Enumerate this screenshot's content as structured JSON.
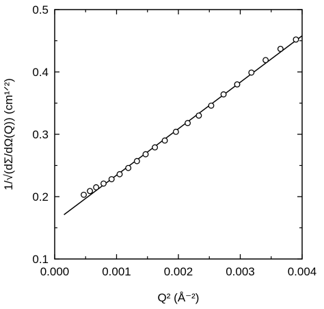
{
  "chart_data": {
    "type": "scatter",
    "xlabel": "Q² (Å⁻²)",
    "ylabel": "1/√(dΣ/dΩ(Q)) (cm¹ᐟ²)",
    "xlim": [
      0.0,
      0.004
    ],
    "ylim": [
      0.1,
      0.5
    ],
    "x_ticks": [
      "0.000",
      "0.001",
      "0.002",
      "0.003",
      "0.004"
    ],
    "y_ticks": [
      "0.1",
      "0.2",
      "0.3",
      "0.4",
      "0.5"
    ],
    "grid": false,
    "legend": "none",
    "series": [
      {
        "marker": "open-circle",
        "points": [
          [
            0.00047,
            0.203
          ],
          [
            0.00057,
            0.209
          ],
          [
            0.00067,
            0.215
          ],
          [
            0.00079,
            0.221
          ],
          [
            0.00092,
            0.228
          ],
          [
            0.00105,
            0.236
          ],
          [
            0.00119,
            0.246
          ],
          [
            0.00133,
            0.257
          ],
          [
            0.00147,
            0.268
          ],
          [
            0.00162,
            0.279
          ],
          [
            0.00178,
            0.29
          ],
          [
            0.00196,
            0.304
          ],
          [
            0.00215,
            0.318
          ],
          [
            0.00233,
            0.33
          ],
          [
            0.00253,
            0.346
          ],
          [
            0.00273,
            0.364
          ],
          [
            0.00295,
            0.38
          ],
          [
            0.00318,
            0.399
          ],
          [
            0.00341,
            0.419
          ],
          [
            0.00365,
            0.437
          ],
          [
            0.0039,
            0.452
          ]
        ]
      },
      {
        "type": "line",
        "points": [
          [
            0.00015,
            0.171
          ],
          [
            0.004,
            0.458
          ]
        ]
      }
    ]
  }
}
